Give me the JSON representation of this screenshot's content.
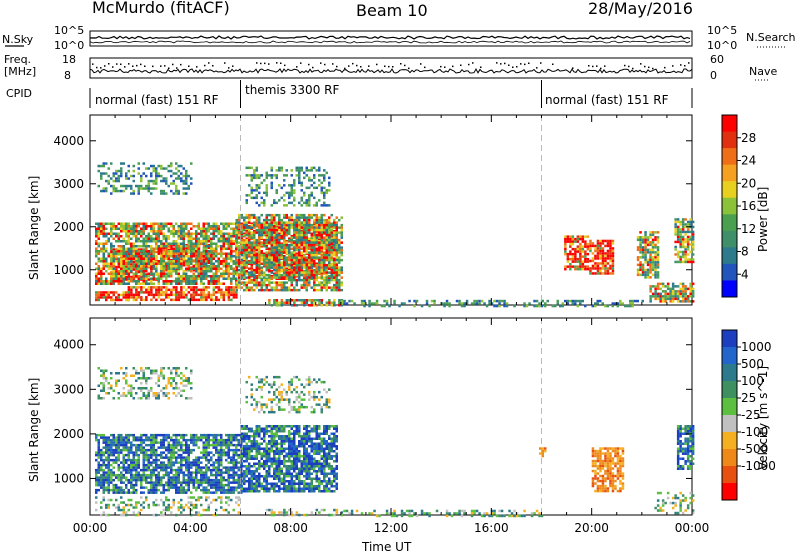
{
  "header": {
    "title": "McMurdo (fitACF)",
    "beam": "Beam 10",
    "date": "28/May/2016"
  },
  "summary_panels": {
    "nsky_label": "N.Sky",
    "nsky_ticks": [
      "10^5",
      "10^0"
    ],
    "nsearch_label": "N.Search",
    "nsearch_ticks": [
      "10^5",
      "10^0"
    ],
    "freq_label": "Freq.",
    "freq_unit": "[MHz]",
    "freq_ticks": [
      "18",
      "8"
    ],
    "nave_label": "Nave",
    "nave_ticks": [
      "60",
      "0"
    ],
    "cpid_label": "CPID",
    "cpid_segments": [
      {
        "label": "normal (fast) 151 RF",
        "start_h": 0,
        "end_h": 6
      },
      {
        "label": "themis 3300 RF",
        "start_h": 6,
        "end_h": 18
      },
      {
        "label": "normal (fast) 151 RF",
        "start_h": 18,
        "end_h": 24
      }
    ]
  },
  "chart_data": [
    {
      "type": "heatmap",
      "title": "",
      "ylabel": "Slant Range [km]",
      "xlabel": "",
      "xlim": [
        0,
        24
      ],
      "ylim": [
        180,
        4600
      ],
      "yticks": [
        "1000",
        "2000",
        "3000",
        "4000"
      ],
      "colorbar": {
        "label": "Power [dB]",
        "range": [
          0,
          32
        ],
        "ticks": [
          "4",
          "8",
          "12",
          "16",
          "20",
          "24",
          "28"
        ],
        "colors": [
          "#0000ff",
          "#2255bb",
          "#2c7a8c",
          "#3f8f6a",
          "#4aa04f",
          "#8cc23a",
          "#e8d020",
          "#f4a020",
          "#ee6f18",
          "#e03010",
          "#ff0000"
        ]
      },
      "regions": [
        {
          "t0": 0.2,
          "t1": 1.5,
          "r0": 300,
          "r1": 500,
          "level": "high"
        },
        {
          "t0": 1.5,
          "t1": 5.8,
          "r0": 320,
          "r1": 620,
          "level": "high"
        },
        {
          "t0": 0.8,
          "t1": 2.6,
          "r0": 800,
          "r1": 1500,
          "level": "high"
        },
        {
          "t0": 2.8,
          "t1": 4.8,
          "r0": 1000,
          "r1": 1600,
          "level": "high"
        },
        {
          "t0": 0.2,
          "t1": 6.0,
          "r0": 700,
          "r1": 2100,
          "level": "mid"
        },
        {
          "t0": 0.3,
          "t1": 4.0,
          "r0": 2800,
          "r1": 3500,
          "level": "low"
        },
        {
          "t0": 6.0,
          "t1": 9.8,
          "r0": 800,
          "r1": 2100,
          "level": "high"
        },
        {
          "t0": 5.8,
          "t1": 10.0,
          "r0": 500,
          "r1": 2300,
          "level": "mid"
        },
        {
          "t0": 6.2,
          "t1": 9.5,
          "r0": 2500,
          "r1": 3400,
          "level": "low"
        },
        {
          "t0": 7.0,
          "t1": 10.0,
          "r0": 180,
          "r1": 320,
          "level": "mid"
        },
        {
          "t0": 10.0,
          "t1": 18.0,
          "r0": 180,
          "r1": 300,
          "level": "low"
        },
        {
          "t0": 18.9,
          "t1": 19.8,
          "r0": 1000,
          "r1": 1800,
          "level": "high"
        },
        {
          "t0": 19.9,
          "t1": 20.8,
          "r0": 900,
          "r1": 1700,
          "level": "high"
        },
        {
          "t0": 21.8,
          "t1": 22.6,
          "r0": 800,
          "r1": 1900,
          "level": "mid"
        },
        {
          "t0": 22.3,
          "t1": 24.0,
          "r0": 250,
          "r1": 700,
          "level": "mid"
        },
        {
          "t0": 23.3,
          "t1": 24.0,
          "r0": 1200,
          "r1": 2200,
          "level": "mid"
        },
        {
          "t0": 18.0,
          "t1": 22.0,
          "r0": 180,
          "r1": 300,
          "level": "low"
        }
      ]
    },
    {
      "type": "heatmap",
      "title": "",
      "ylabel": "Slant Range [km]",
      "xlabel": "Time UT",
      "xlim": [
        0,
        24
      ],
      "ylim": [
        180,
        4600
      ],
      "xticks": [
        "00:00",
        "04:00",
        "08:00",
        "12:00",
        "16:00",
        "20:00",
        "00:00"
      ],
      "yticks": [
        "1000",
        "2000",
        "3000",
        "4000"
      ],
      "colorbar": {
        "label": "Velocity [m s^-1]",
        "range": [
          -1200,
          1200
        ],
        "ticks": [
          "1000",
          "500",
          "100",
          "25",
          "-25",
          "-100",
          "-500",
          "-1000"
        ],
        "colors": [
          "#1c3fbf",
          "#2266cc",
          "#2c7a8c",
          "#3f9060",
          "#5cbf40",
          "#c0c0c0",
          "#f4b020",
          "#ee8818",
          "#e85010",
          "#ff0000"
        ]
      },
      "regions": [
        {
          "t0": 0.2,
          "t1": 6.0,
          "r0": 700,
          "r1": 2000,
          "level": "pos"
        },
        {
          "t0": 0.2,
          "t1": 6.0,
          "r0": 180,
          "r1": 600,
          "level": "mix"
        },
        {
          "t0": 0.3,
          "t1": 4.0,
          "r0": 2800,
          "r1": 3500,
          "level": "mix"
        },
        {
          "t0": 6.0,
          "t1": 9.8,
          "r0": 700,
          "r1": 2200,
          "level": "pos"
        },
        {
          "t0": 6.2,
          "t1": 9.5,
          "r0": 2500,
          "r1": 3300,
          "level": "mix"
        },
        {
          "t0": 7.0,
          "t1": 10.0,
          "r0": 180,
          "r1": 320,
          "level": "mix"
        },
        {
          "t0": 10.0,
          "t1": 18.0,
          "r0": 180,
          "r1": 300,
          "level": "mix"
        },
        {
          "t0": 20.0,
          "t1": 21.2,
          "r0": 700,
          "r1": 1700,
          "level": "neg"
        },
        {
          "t0": 17.9,
          "t1": 18.1,
          "r0": 1500,
          "r1": 1700,
          "level": "neg"
        },
        {
          "t0": 22.5,
          "t1": 24.0,
          "r0": 200,
          "r1": 700,
          "level": "mix"
        },
        {
          "t0": 23.4,
          "t1": 24.0,
          "r0": 1200,
          "r1": 2200,
          "level": "pos"
        }
      ]
    }
  ]
}
